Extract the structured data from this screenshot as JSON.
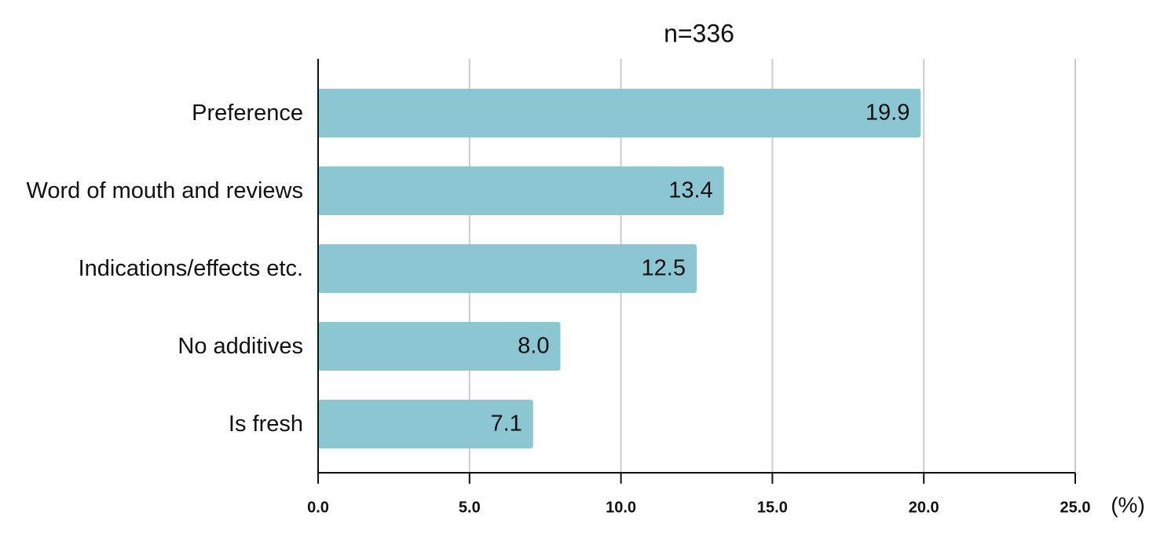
{
  "chart_data": {
    "type": "hbar",
    "title": "n=336",
    "categories": [
      "Preference",
      "Word of mouth and reviews",
      "Indications/effects etc.",
      "No additives",
      "Is fresh"
    ],
    "values": [
      19.9,
      13.4,
      12.5,
      8.0,
      7.1
    ],
    "value_labels": [
      "19.9",
      "13.4",
      "12.5",
      "8.0",
      "7.1"
    ],
    "color": "#8cc6d3",
    "xlim": [
      0,
      25
    ],
    "xticks": [
      {
        "value": 0,
        "label": "0.0"
      },
      {
        "value": 5,
        "label": "5.0"
      },
      {
        "value": 10,
        "label": "10.0"
      },
      {
        "value": 15,
        "label": "15.0"
      },
      {
        "value": 20,
        "label": "20.0"
      },
      {
        "value": 25,
        "label": "25.0"
      }
    ],
    "x_unit": "(%)",
    "grid": true
  }
}
